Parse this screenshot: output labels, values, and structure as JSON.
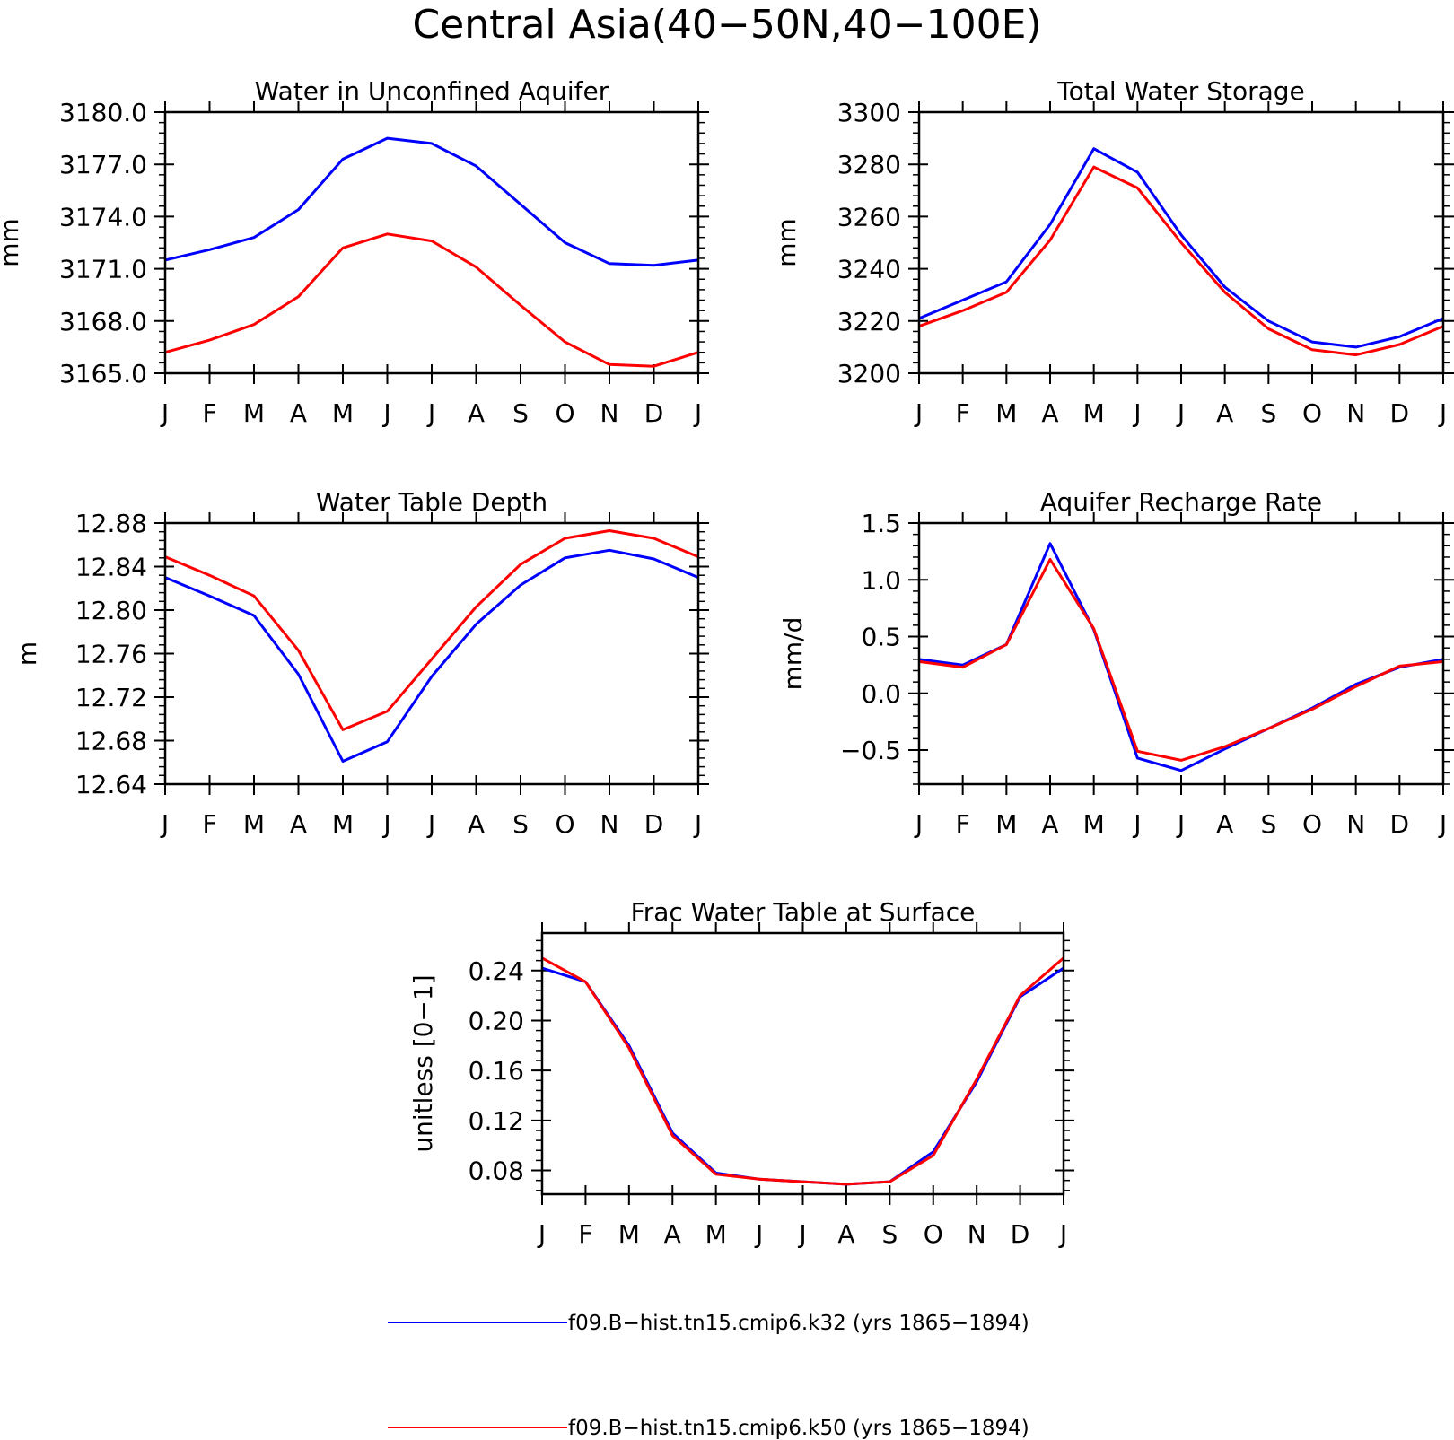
{
  "figure": {
    "title": "Central Asia(40−50N,40−100E)",
    "month_labels": [
      "J",
      "F",
      "M",
      "A",
      "M",
      "J",
      "J",
      "A",
      "S",
      "O",
      "N",
      "D",
      "J"
    ],
    "series_colors": [
      "#0000ff",
      "#ff0000"
    ]
  },
  "legend": [
    {
      "label": "f09.B−hist.tn15.cmip6.k32 (yrs 1865−1894)",
      "color": "#0000ff"
    },
    {
      "label": "f09.B−hist.tn15.cmip6.k50 (yrs 1865−1894)",
      "color": "#ff0000"
    }
  ],
  "chart_data": [
    {
      "type": "line",
      "title": "Water in Unconfined Aquifer",
      "ylabel": "mm",
      "ylim": [
        3165.0,
        3180.0
      ],
      "yticks": [
        "3165.0",
        "3168.0",
        "3171.0",
        "3174.0",
        "3177.0",
        "3180.0"
      ],
      "ytick_values": [
        3165,
        3168,
        3171,
        3174,
        3177,
        3180
      ],
      "x": [
        "J",
        "F",
        "M",
        "A",
        "M",
        "J",
        "J",
        "A",
        "S",
        "O",
        "N",
        "D",
        "J"
      ],
      "series": [
        {
          "color": "#0000ff",
          "values": [
            3171.5,
            3172.1,
            3172.8,
            3174.4,
            3177.3,
            3178.5,
            3178.2,
            3176.9,
            3174.7,
            3172.5,
            3171.3,
            3171.2,
            3171.5
          ]
        },
        {
          "color": "#ff0000",
          "values": [
            3166.2,
            3166.9,
            3167.8,
            3169.4,
            3172.2,
            3173.0,
            3172.6,
            3171.1,
            3168.9,
            3166.8,
            3165.5,
            3165.4,
            3166.2
          ]
        }
      ]
    },
    {
      "type": "line",
      "title": "Total Water Storage",
      "ylabel": "mm",
      "ylim": [
        3200,
        3300
      ],
      "yticks": [
        "3200",
        "3220",
        "3240",
        "3260",
        "3280",
        "3300"
      ],
      "ytick_values": [
        3200,
        3220,
        3240,
        3260,
        3280,
        3300
      ],
      "x": [
        "J",
        "F",
        "M",
        "A",
        "M",
        "J",
        "J",
        "A",
        "S",
        "O",
        "N",
        "D",
        "J"
      ],
      "series": [
        {
          "color": "#0000ff",
          "values": [
            3221,
            3228,
            3235,
            3257,
            3286,
            3277,
            3253,
            3233,
            3220,
            3212,
            3210,
            3214,
            3221
          ]
        },
        {
          "color": "#ff0000",
          "values": [
            3218,
            3224,
            3231,
            3251,
            3279,
            3271,
            3250,
            3231,
            3217,
            3209,
            3207,
            3211,
            3218
          ]
        }
      ]
    },
    {
      "type": "line",
      "title": "Water Table Depth",
      "ylabel": "m",
      "ylim": [
        12.64,
        12.88
      ],
      "yticks": [
        "12.64",
        "12.68",
        "12.72",
        "12.76",
        "12.80",
        "12.84",
        "12.88"
      ],
      "ytick_values": [
        12.64,
        12.68,
        12.72,
        12.76,
        12.8,
        12.84,
        12.88
      ],
      "x": [
        "J",
        "F",
        "M",
        "A",
        "M",
        "J",
        "J",
        "A",
        "S",
        "O",
        "N",
        "D",
        "J"
      ],
      "series": [
        {
          "color": "#0000ff",
          "values": [
            12.83,
            12.813,
            12.795,
            12.741,
            12.661,
            12.679,
            12.739,
            12.787,
            12.823,
            12.848,
            12.855,
            12.847,
            12.83
          ]
        },
        {
          "color": "#ff0000",
          "values": [
            12.849,
            12.832,
            12.813,
            12.763,
            12.69,
            12.707,
            12.755,
            12.803,
            12.842,
            12.866,
            12.873,
            12.866,
            12.849
          ]
        }
      ]
    },
    {
      "type": "line",
      "title": "Aquifer Recharge Rate",
      "ylabel": "mm/d",
      "ylim": [
        -0.8,
        1.5
      ],
      "yticks": [
        "−0.5",
        "0.0",
        "0.5",
        "1.0",
        "1.5"
      ],
      "ytick_values": [
        -0.5,
        0.0,
        0.5,
        1.0,
        1.5
      ],
      "x": [
        "J",
        "F",
        "M",
        "A",
        "M",
        "J",
        "J",
        "A",
        "S",
        "O",
        "N",
        "D",
        "J"
      ],
      "series": [
        {
          "color": "#0000ff",
          "values": [
            0.3,
            0.25,
            0.43,
            1.32,
            0.56,
            -0.57,
            -0.68,
            -0.49,
            -0.31,
            -0.13,
            0.08,
            0.23,
            0.3
          ]
        },
        {
          "color": "#ff0000",
          "values": [
            0.28,
            0.23,
            0.43,
            1.18,
            0.57,
            -0.51,
            -0.59,
            -0.47,
            -0.31,
            -0.14,
            0.06,
            0.24,
            0.28
          ]
        }
      ]
    },
    {
      "type": "line",
      "title": "Frac Water Table at Surface",
      "ylabel": "unitless [0−1]",
      "ylim": [
        0.061,
        0.27
      ],
      "yticks": [
        "0.08",
        "0.12",
        "0.16",
        "0.20",
        "0.24"
      ],
      "ytick_values": [
        0.08,
        0.12,
        0.16,
        0.2,
        0.24
      ],
      "x": [
        "J",
        "F",
        "M",
        "A",
        "M",
        "J",
        "J",
        "A",
        "S",
        "O",
        "N",
        "D",
        "J"
      ],
      "series": [
        {
          "color": "#0000ff",
          "values": [
            0.242,
            0.231,
            0.18,
            0.11,
            0.078,
            0.073,
            0.071,
            0.069,
            0.071,
            0.095,
            0.151,
            0.219,
            0.242
          ]
        },
        {
          "color": "#ff0000",
          "values": [
            0.25,
            0.231,
            0.178,
            0.108,
            0.077,
            0.073,
            0.071,
            0.069,
            0.071,
            0.092,
            0.153,
            0.22,
            0.25
          ]
        }
      ]
    }
  ]
}
